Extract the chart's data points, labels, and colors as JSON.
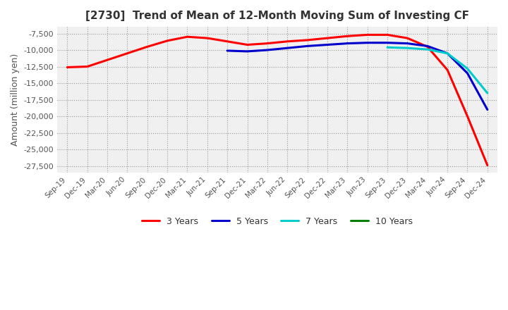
{
  "title": "[2730]  Trend of Mean of 12-Month Moving Sum of Investing CF",
  "ylabel": "Amount (million yen)",
  "ylim": [
    -28500,
    -6500
  ],
  "yticks": [
    -27500,
    -25000,
    -22500,
    -20000,
    -17500,
    -15000,
    -12500,
    -10000,
    -7500
  ],
  "legend_labels": [
    "3 Years",
    "5 Years",
    "7 Years",
    "10 Years"
  ],
  "legend_colors": [
    "#ff0000",
    "#0000cd",
    "#00cccc",
    "#008000"
  ],
  "bg_color": "#f0f0f0",
  "x_labels": [
    "Sep-19",
    "Dec-19",
    "Mar-20",
    "Jun-20",
    "Sep-20",
    "Dec-20",
    "Mar-21",
    "Jun-21",
    "Sep-21",
    "Dec-21",
    "Mar-22",
    "Jun-22",
    "Sep-22",
    "Dec-22",
    "Mar-23",
    "Jun-23",
    "Sep-23",
    "Dec-23",
    "Mar-24",
    "Jun-24",
    "Sep-24",
    "Dec-24"
  ],
  "series_3y": [
    -12600,
    -12500,
    -11500,
    -10500,
    -9500,
    -8600,
    -8000,
    -8200,
    -8700,
    -9200,
    -9000,
    -8700,
    -8500,
    -8200,
    -7900,
    -7700,
    -7700,
    -8200,
    -9500,
    -13000,
    -20000,
    -27400
  ],
  "series_5y": [
    null,
    null,
    null,
    null,
    null,
    null,
    null,
    null,
    -10100,
    -10200,
    -10000,
    -9700,
    -9400,
    -9200,
    -9000,
    -8900,
    -8900,
    -9000,
    -9400,
    -10500,
    -13500,
    -19000
  ],
  "series_7y": [
    null,
    null,
    null,
    null,
    null,
    null,
    null,
    null,
    null,
    null,
    null,
    null,
    null,
    null,
    null,
    null,
    -9600,
    -9700,
    -9900,
    -10500,
    -12800,
    -16500
  ],
  "series_10y": [
    null,
    null,
    null,
    null,
    null,
    null,
    null,
    null,
    null,
    null,
    null,
    null,
    null,
    null,
    null,
    null,
    null,
    null,
    null,
    null,
    null,
    null
  ]
}
